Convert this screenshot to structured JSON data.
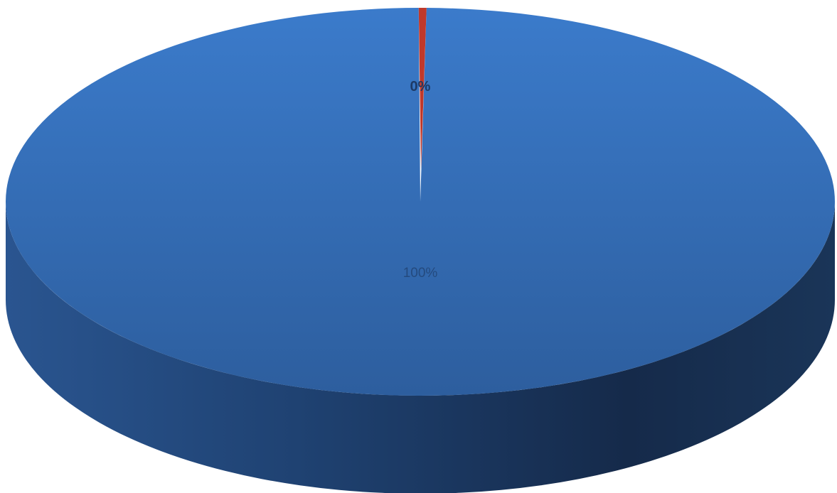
{
  "chart_data": {
    "type": "pie",
    "style": "3d",
    "slices": [
      {
        "value": 99.7,
        "label": "100%",
        "color": "#3a73bd"
      },
      {
        "value": 0.3,
        "label": "0%",
        "color": "#c0392b"
      }
    ]
  }
}
